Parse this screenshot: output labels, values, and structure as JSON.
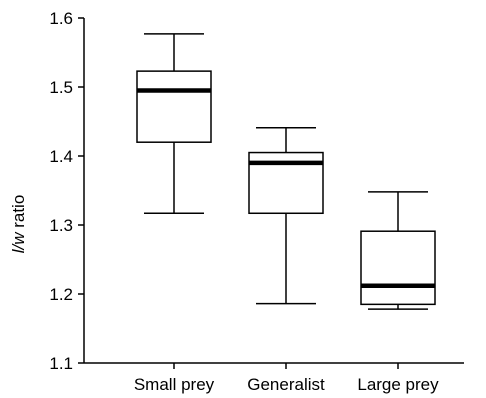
{
  "chart_data": {
    "type": "boxplot",
    "ylabel_italic": "l/w",
    "ylabel_rest": " ratio",
    "ylim": [
      1.1,
      1.6
    ],
    "yticks": [
      1.1,
      1.2,
      1.3,
      1.4,
      1.5,
      1.6
    ],
    "ytick_labels": [
      "1.1",
      "1.2",
      "1.3",
      "1.4",
      "1.5",
      "1.6"
    ],
    "grid": false,
    "categories": [
      "Small prey",
      "Generalist",
      "Large prey"
    ],
    "boxes": [
      {
        "category": "Small prey",
        "whisker_low": 1.317,
        "q1": 1.42,
        "median": 1.495,
        "q3": 1.523,
        "whisker_high": 1.577
      },
      {
        "category": "Generalist",
        "whisker_low": 1.186,
        "q1": 1.317,
        "median": 1.39,
        "q3": 1.405,
        "whisker_high": 1.441
      },
      {
        "category": "Large prey",
        "whisker_low": 1.178,
        "q1": 1.185,
        "median": 1.212,
        "q3": 1.291,
        "whisker_high": 1.348
      }
    ]
  }
}
